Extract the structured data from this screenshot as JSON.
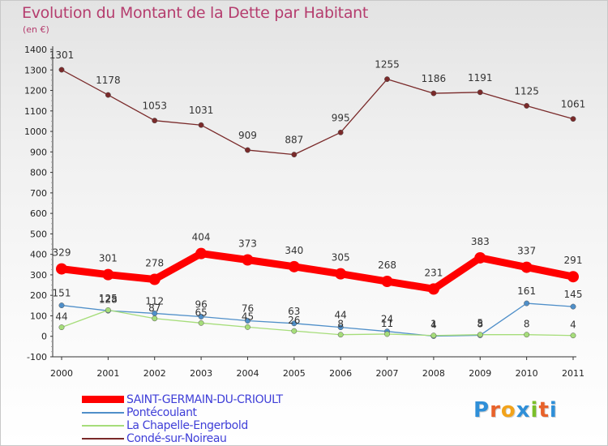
{
  "header": {
    "title": "Evolution du Montant de la Dette par Habitant",
    "subtitle": "(en €)"
  },
  "logo": {
    "text": "Proxiti",
    "colors": [
      "#2f8fd8",
      "#e8622a",
      "#f2a31b",
      "#2f8fd8",
      "#7bbf2a",
      "#e8622a",
      "#2f8fd8"
    ]
  },
  "chart_data": {
    "type": "line",
    "title": "Evolution du Montant de la Dette par Habitant",
    "subtitle": "(en €)",
    "xlabel": "",
    "ylabel": "",
    "ylim": [
      -100,
      1400
    ],
    "ytick_step": 100,
    "grid": false,
    "legend_position": "bottom-left",
    "x": [
      "2000",
      "2001",
      "2002",
      "2003",
      "2004",
      "2005",
      "2006",
      "2007",
      "2008",
      "2009",
      "2010",
      "2011"
    ],
    "series": [
      {
        "name": "Condé-sur-Noireau",
        "color": "#7a2a2a",
        "values": [
          1301,
          1178,
          1053,
          1031,
          909,
          887,
          995,
          1255,
          1186,
          1191,
          1125,
          1061
        ]
      },
      {
        "name": "Pontécoulant",
        "color": "#4f8fc9",
        "values": [
          151,
          125,
          112,
          96,
          76,
          63,
          44,
          24,
          1,
          5,
          161,
          145
        ]
      },
      {
        "name": "La Chapelle-Engerbold",
        "color": "#a6dd7a",
        "values": [
          44,
          128,
          87,
          65,
          45,
          26,
          8,
          11,
          4,
          8,
          8,
          4
        ]
      },
      {
        "name": "SAINT-GERMAIN-DU-CRIOULT",
        "color": "#ff0000",
        "values": [
          329,
          301,
          278,
          404,
          373,
          340,
          305,
          268,
          231,
          383,
          337,
          291
        ]
      }
    ]
  },
  "legend": [
    {
      "label": "SAINT-GERMAIN-DU-CRIOULT",
      "color": "#ff0000",
      "style": "thick"
    },
    {
      "label": "Pontécoulant",
      "color": "#4f8fc9",
      "style": "thin"
    },
    {
      "label": "La Chapelle-Engerbold",
      "color": "#a6dd7a",
      "style": "thin"
    },
    {
      "label": "Condé-sur-Noireau",
      "color": "#7a2a2a",
      "style": "thin"
    }
  ]
}
